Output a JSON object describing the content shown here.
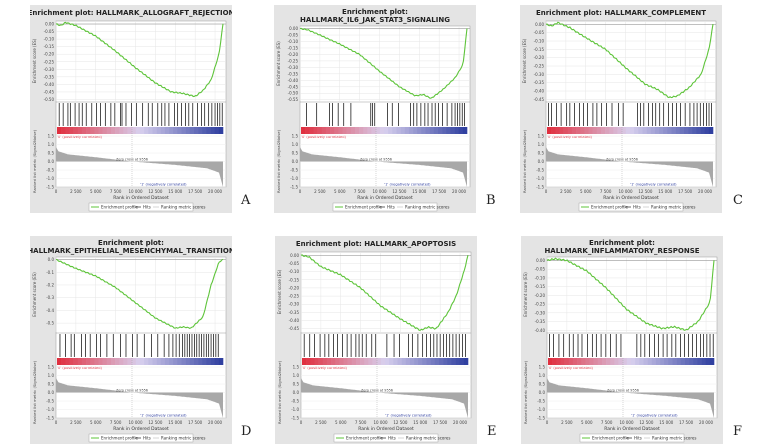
{
  "common": {
    "es_ylabel": "Enrichment score (ES)",
    "metric_ylabel": "Ranked list metric (Signal2Noise)",
    "xlabel": "Rank in Ordered Dataset",
    "pos_label": "'0' (positively correlated)",
    "neg_label": "'1' (negatively correlated)",
    "zero_cross": "Zero cross at 9556",
    "x_ticks": [
      "0",
      "2 500",
      "5 000",
      "7 500",
      "10 000",
      "12 500",
      "15 000",
      "17 500",
      "20 000"
    ],
    "x_tick_values": [
      0,
      2500,
      5000,
      7500,
      10000,
      12500,
      15000,
      17500,
      20000
    ],
    "x_range": [
      0,
      21000
    ],
    "metric_ticks": [
      1.5,
      1.0,
      0.5,
      0.0,
      -0.5,
      -1.0,
      -1.5
    ],
    "metric_curve": [
      [
        0,
        0.85
      ],
      [
        300,
        0.6
      ],
      [
        1500,
        0.42
      ],
      [
        5000,
        0.25
      ],
      [
        9556,
        0
      ],
      [
        15000,
        -0.2
      ],
      [
        19000,
        -0.4
      ],
      [
        20500,
        -0.65
      ],
      [
        21000,
        -1.5
      ]
    ],
    "legend": [
      "Enrichment profile",
      "Hits",
      "Ranking metric scores"
    ],
    "colors": {
      "es_line": "#5ec43a",
      "panel_bg": "#e4e4e4",
      "pos": "#e03040",
      "neg": "#3040a0",
      "hits": "#000000",
      "metric": "#a8a8a8"
    }
  },
  "chart_data": [
    {
      "type": "line",
      "panel_letter": "A",
      "title": [
        "Enrichment plot: HALLMARK_ALLOGRAFT_REJECTION"
      ],
      "ylim": [
        -0.51,
        0.02
      ],
      "yticks": [
        "0.00",
        "-0.05",
        "-0.10",
        "-0.15",
        "-0.20",
        "-0.25",
        "-0.30",
        "-0.35",
        "-0.40",
        "-0.45",
        "-0.50"
      ],
      "ytick_values": [
        0,
        -0.05,
        -0.1,
        -0.15,
        -0.2,
        -0.25,
        -0.3,
        -0.35,
        -0.4,
        -0.45,
        -0.5
      ],
      "es": [
        [
          0,
          0
        ],
        [
          600,
          -0.01
        ],
        [
          1200,
          0.01
        ],
        [
          2500,
          -0.01
        ],
        [
          5000,
          -0.08
        ],
        [
          7500,
          -0.18
        ],
        [
          10000,
          -0.29
        ],
        [
          12500,
          -0.39
        ],
        [
          14500,
          -0.45
        ],
        [
          16000,
          -0.46
        ],
        [
          17500,
          -0.48
        ],
        [
          18500,
          -0.44
        ],
        [
          19500,
          -0.37
        ],
        [
          20500,
          -0.2
        ],
        [
          21000,
          0
        ]
      ],
      "hits": [
        400,
        900,
        1500,
        1800,
        2400,
        2900,
        3300,
        3800,
        4500,
        5100,
        5600,
        6200,
        6900,
        7400,
        8100,
        8300,
        8800,
        9500,
        10100,
        10900,
        11600,
        12100,
        12800,
        13300,
        13700,
        14200,
        14900,
        15300,
        15800,
        16300,
        16700,
        17200,
        17800,
        18300,
        18700,
        19200,
        19600,
        20000,
        20300,
        20600,
        20900
      ]
    },
    {
      "type": "line",
      "panel_letter": "B",
      "title": [
        "Enrichment plot:",
        "HALLMARK_IL6_JAK_STAT3_SIGNALING"
      ],
      "ylim": [
        -0.56,
        0.02
      ],
      "yticks": [
        "0.00",
        "-0.05",
        "-0.10",
        "-0.15",
        "-0.20",
        "-0.25",
        "-0.30",
        "-0.35",
        "-0.40",
        "-0.45",
        "-0.50",
        "-0.55"
      ],
      "ytick_values": [
        0,
        -0.05,
        -0.1,
        -0.15,
        -0.2,
        -0.25,
        -0.3,
        -0.35,
        -0.4,
        -0.45,
        -0.5,
        -0.55
      ],
      "es": [
        [
          0,
          0
        ],
        [
          1000,
          -0.01
        ],
        [
          2500,
          -0.05
        ],
        [
          5000,
          -0.12
        ],
        [
          7500,
          -0.2
        ],
        [
          10000,
          -0.33
        ],
        [
          12500,
          -0.45
        ],
        [
          14500,
          -0.52
        ],
        [
          15500,
          -0.51
        ],
        [
          16500,
          -0.54
        ],
        [
          18000,
          -0.47
        ],
        [
          19500,
          -0.38
        ],
        [
          20500,
          -0.28
        ],
        [
          21000,
          0
        ]
      ],
      "hits": [
        800,
        2100,
        3700,
        4100,
        4800,
        5500,
        6400,
        8900,
        9100,
        9400,
        11000,
        11600,
        12400,
        13900,
        14300,
        14700,
        15200,
        15700,
        16100,
        16600,
        17000,
        17400,
        17900,
        18500,
        19100,
        19500,
        19800,
        20100,
        20400,
        20700
      ]
    },
    {
      "type": "line",
      "panel_letter": "C",
      "title": [
        "Enrichment plot: HALLMARK_COMPLEMENT"
      ],
      "ylim": [
        -0.46,
        0.02
      ],
      "yticks": [
        "0.00",
        "-0.05",
        "-0.10",
        "-0.15",
        "-0.20",
        "-0.25",
        "-0.30",
        "-0.35",
        "-0.40",
        "-0.45"
      ],
      "ytick_values": [
        0,
        -0.05,
        -0.1,
        -0.15,
        -0.2,
        -0.25,
        -0.3,
        -0.35,
        -0.4,
        -0.45
      ],
      "es": [
        [
          0,
          0
        ],
        [
          700,
          -0.01
        ],
        [
          1500,
          0.01
        ],
        [
          3000,
          -0.02
        ],
        [
          5000,
          -0.08
        ],
        [
          7500,
          -0.15
        ],
        [
          10000,
          -0.26
        ],
        [
          12500,
          -0.36
        ],
        [
          14000,
          -0.39
        ],
        [
          15500,
          -0.44
        ],
        [
          16500,
          -0.43
        ],
        [
          18000,
          -0.38
        ],
        [
          19500,
          -0.3
        ],
        [
          20500,
          -0.15
        ],
        [
          21000,
          0
        ]
      ],
      "hits": [
        300,
        700,
        1300,
        1900,
        2600,
        3000,
        3600,
        4200,
        4700,
        5200,
        5900,
        6400,
        7000,
        7600,
        8300,
        9100,
        9700,
        11500,
        11900,
        12300,
        12900,
        13400,
        13800,
        14300,
        14800,
        15400,
        15900,
        16400,
        16900,
        17500,
        18100,
        18600,
        19000,
        19400,
        19800,
        20200,
        20500,
        20800
      ]
    },
    {
      "type": "line",
      "panel_letter": "D",
      "title": [
        "Enrichment plot:",
        "HALLMARK_EPITHELIAL_MESENCHYMAL_TRANSITION"
      ],
      "ylim": [
        -0.57,
        0.02
      ],
      "yticks": [
        "0.0",
        "-0.1",
        "-0.2",
        "-0.3",
        "-0.4",
        "-0.5"
      ],
      "ytick_values": [
        0,
        -0.1,
        -0.2,
        -0.3,
        -0.4,
        -0.5
      ],
      "es": [
        [
          0,
          0
        ],
        [
          2500,
          -0.07
        ],
        [
          5000,
          -0.13
        ],
        [
          7500,
          -0.22
        ],
        [
          10000,
          -0.34
        ],
        [
          12500,
          -0.46
        ],
        [
          15000,
          -0.54
        ],
        [
          16000,
          -0.53
        ],
        [
          17000,
          -0.54
        ],
        [
          18500,
          -0.45
        ],
        [
          19500,
          -0.2
        ],
        [
          20500,
          -0.02
        ],
        [
          21000,
          0
        ]
      ],
      "hits": [
        500,
        1200,
        1900,
        2300,
        3200,
        3700,
        4300,
        5100,
        5600,
        6400,
        7200,
        8100,
        8800,
        9600,
        10200,
        11100,
        12000,
        12800,
        13600,
        14200,
        14700,
        15100,
        15500,
        15900,
        16200,
        16500,
        16800,
        17100,
        17400,
        17700,
        18000,
        18300,
        18600,
        18900,
        19200,
        19500,
        19800,
        20100,
        20400
      ]
    },
    {
      "type": "line",
      "panel_letter": "E",
      "title": [
        "Enrichment plot: HALLMARK_APOPTOSIS"
      ],
      "ylim": [
        -0.47,
        0.02
      ],
      "yticks": [
        "0.00",
        "-0.05",
        "-0.10",
        "-0.15",
        "-0.20",
        "-0.25",
        "-0.30",
        "-0.35",
        "-0.40",
        "-0.45"
      ],
      "ytick_values": [
        0,
        -0.05,
        -0.1,
        -0.15,
        -0.2,
        -0.25,
        -0.3,
        -0.35,
        -0.4,
        -0.45
      ],
      "es": [
        [
          0,
          0
        ],
        [
          1000,
          -0.01
        ],
        [
          2500,
          -0.07
        ],
        [
          5000,
          -0.12
        ],
        [
          7500,
          -0.2
        ],
        [
          10000,
          -0.31
        ],
        [
          12500,
          -0.39
        ],
        [
          15000,
          -0.46
        ],
        [
          16000,
          -0.44
        ],
        [
          17000,
          -0.45
        ],
        [
          18500,
          -0.35
        ],
        [
          19500,
          -0.25
        ],
        [
          20500,
          -0.1
        ],
        [
          21000,
          0
        ]
      ],
      "hits": [
        400,
        1100,
        1700,
        2400,
        3000,
        3500,
        4100,
        4600,
        5200,
        5800,
        6300,
        6900,
        7300,
        7700,
        8200,
        8900,
        9400,
        10800,
        11700,
        12400,
        13500,
        14000,
        14700,
        15300,
        15800,
        16300,
        16700,
        17100,
        17500,
        17900,
        18300,
        18700,
        19100,
        19500,
        19900,
        20300,
        20700
      ]
    },
    {
      "type": "line",
      "panel_letter": "F",
      "title": [
        "Enrichment plot:",
        "HALLMARK_INFLAMMATORY_RESPONSE"
      ],
      "ylim": [
        -0.41,
        0.02
      ],
      "yticks": [
        "0.00",
        "-0.05",
        "-0.10",
        "-0.15",
        "-0.20",
        "-0.25",
        "-0.30",
        "-0.35",
        "-0.40"
      ],
      "ytick_values": [
        0,
        -0.05,
        -0.1,
        -0.15,
        -0.2,
        -0.25,
        -0.3,
        -0.35,
        -0.4
      ],
      "es": [
        [
          0,
          0
        ],
        [
          1000,
          0.01
        ],
        [
          2500,
          0
        ],
        [
          5000,
          -0.06
        ],
        [
          7500,
          -0.16
        ],
        [
          10000,
          -0.28
        ],
        [
          12500,
          -0.36
        ],
        [
          14500,
          -0.39
        ],
        [
          16000,
          -0.38
        ],
        [
          17500,
          -0.4
        ],
        [
          19000,
          -0.35
        ],
        [
          20500,
          -0.24
        ],
        [
          21000,
          0
        ]
      ],
      "hits": [
        300,
        800,
        1500,
        2100,
        2800,
        3300,
        3900,
        4400,
        5100,
        5700,
        6200,
        6800,
        7400,
        8000,
        8700,
        9300,
        11300,
        11800,
        12300,
        12900,
        13500,
        14000,
        14600,
        15100,
        15700,
        16200,
        16800,
        17300,
        17800,
        18300,
        18800,
        19300,
        19700,
        20100,
        20500,
        20900
      ]
    }
  ]
}
